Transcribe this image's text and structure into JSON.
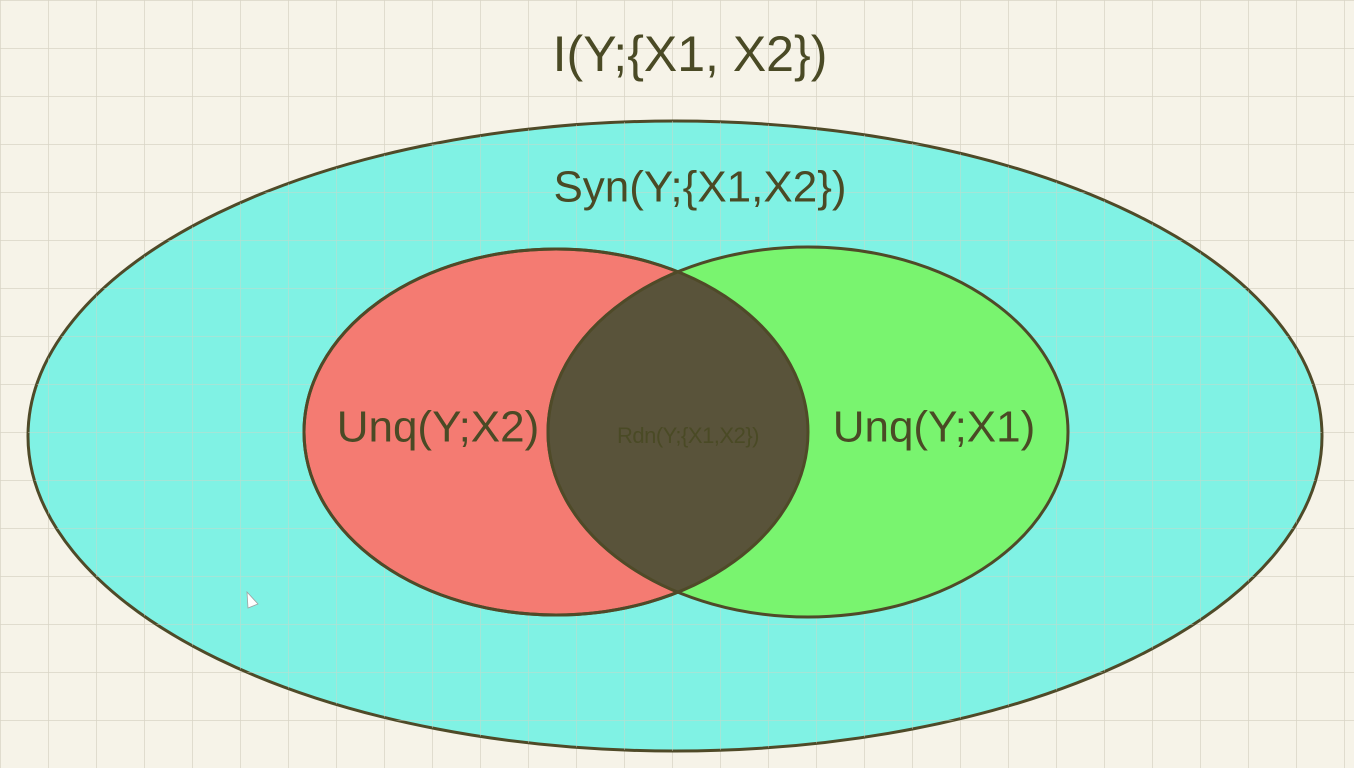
{
  "title": "I(Y;{X1, X2})",
  "regions": {
    "synergy": {
      "label": "Syn(Y;{X1,X2})",
      "color": "#7cf2e3"
    },
    "unique_x2": {
      "label": "Unq(Y;X2)",
      "color": "#f47b72"
    },
    "unique_x1": {
      "label": "Unq(Y;X1)",
      "color": "#79f46f"
    },
    "redundancy": {
      "label": "Rdn(Y;{X1,X2})",
      "color": "#59533a"
    }
  },
  "colors": {
    "background": "#f6f3e8",
    "grid": "#d8d4c6",
    "outline": "#4f4a28",
    "text": "#4a4a25"
  }
}
